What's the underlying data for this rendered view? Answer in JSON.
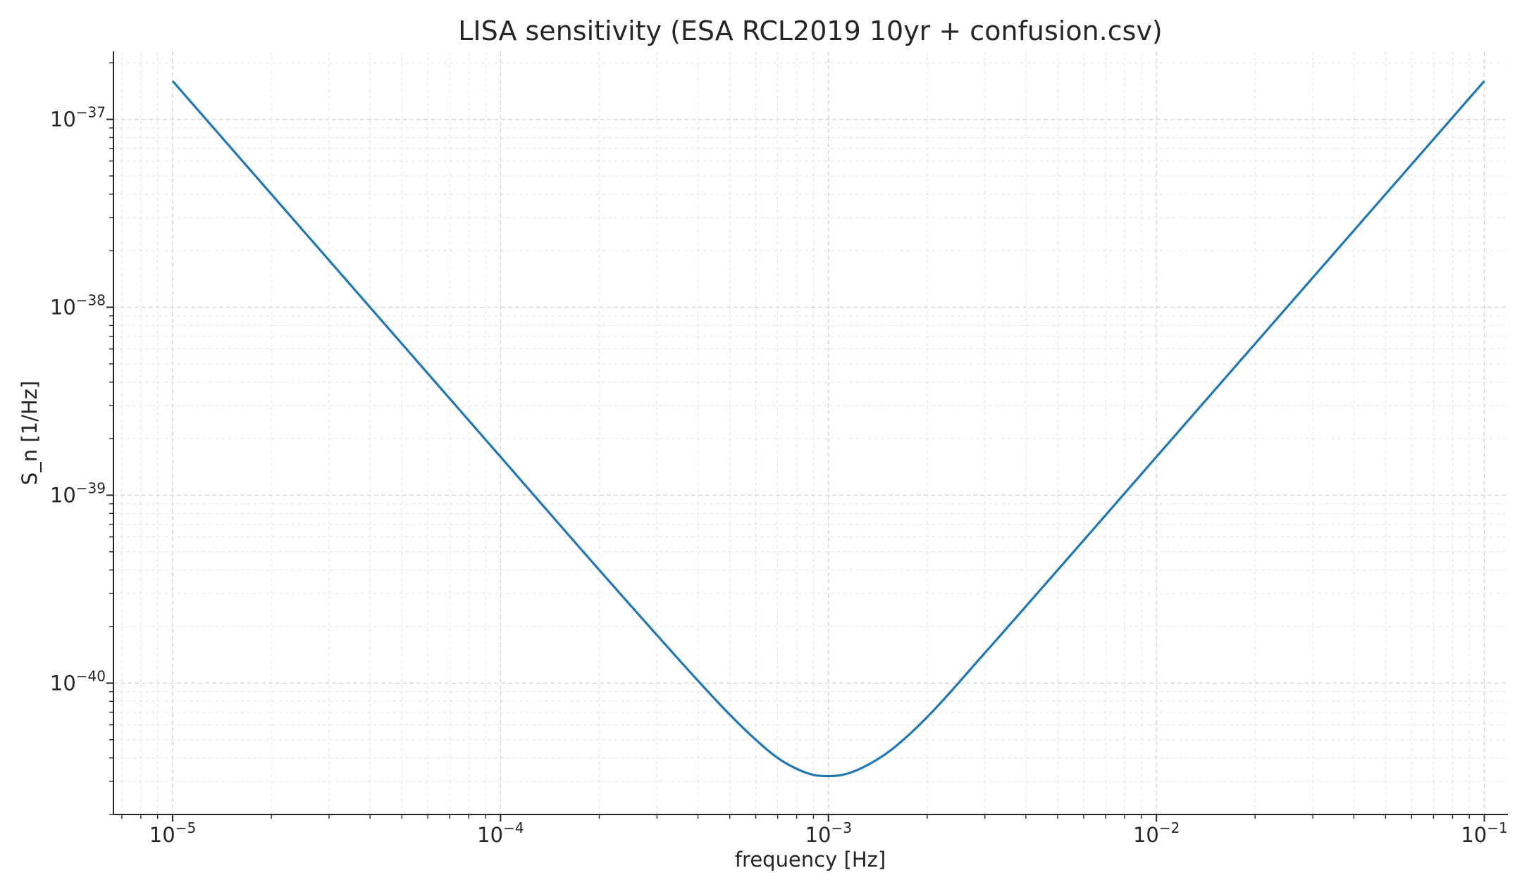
{
  "chart_data": {
    "type": "line",
    "title": "LISA sensitivity (ESA RCL2019 10yr + confusion.csv)",
    "xlabel": "frequency [Hz]",
    "ylabel": "S_n [1/Hz]",
    "xscale": "log",
    "yscale": "log",
    "xlim": [
      6.6e-06,
      0.118
    ],
    "ylim": [
      2e-41,
      2.3e-37
    ],
    "grid": true,
    "legend": "none",
    "x_ticks": [
      {
        "base": "10",
        "exp": "−5"
      },
      {
        "base": "10",
        "exp": "−4"
      },
      {
        "base": "10",
        "exp": "−3"
      },
      {
        "base": "10",
        "exp": "−2"
      },
      {
        "base": "10",
        "exp": "−1"
      }
    ],
    "y_ticks": [
      {
        "base": "10",
        "exp": "−37"
      },
      {
        "base": "10",
        "exp": "−38"
      },
      {
        "base": "10",
        "exp": "−39"
      },
      {
        "base": "10",
        "exp": "−40"
      }
    ],
    "series": [
      {
        "color": "#1f77b4",
        "x": [
          1e-05,
          2e-05,
          5e-05,
          0.0001,
          0.0002,
          0.0003,
          0.0004,
          0.0005,
          0.0006,
          0.0007,
          0.0008,
          0.0009,
          0.001,
          0.0011,
          0.0012,
          0.0014,
          0.0016,
          0.002,
          0.003,
          0.005,
          0.01,
          0.02,
          0.05,
          0.1
        ],
        "y": [
          1.6e-37,
          4e-38,
          6.4e-39,
          1.6e-39,
          4e-40,
          1.8e-40,
          1.03e-40,
          6.8e-41,
          5e-41,
          4e-41,
          3.5e-41,
          3.25e-41,
          3.2e-41,
          3.25e-41,
          3.4e-41,
          3.9e-41,
          4.6e-41,
          6.6e-41,
          1.45e-40,
          4e-40,
          1.6e-39,
          6.4e-39,
          4e-38,
          1.6e-37
        ]
      }
    ]
  }
}
